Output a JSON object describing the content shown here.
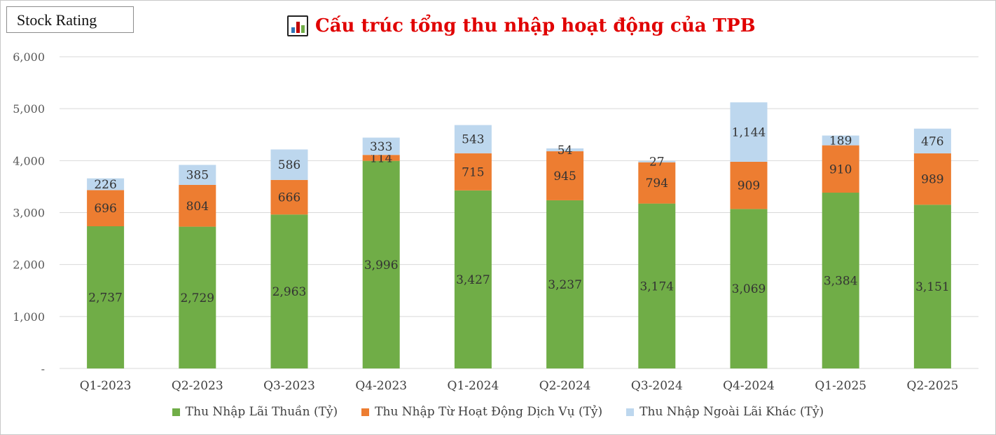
{
  "brand": {
    "label": "Stock Rating"
  },
  "header": {
    "title": "Cấu trúc tổng thu nhập hoạt động của TPB"
  },
  "colors": {
    "net_interest": "#70ad47",
    "service": "#ed7d31",
    "other": "#bdd7ee",
    "title": "#e00000",
    "grid": "#d9d9d9"
  },
  "chart_data": {
    "type": "bar",
    "stacked": true,
    "title": "Cấu trúc tổng thu nhập hoạt động của TPB",
    "categories": [
      "Q1-2023",
      "Q2-2023",
      "Q3-2023",
      "Q4-2023",
      "Q1-2024",
      "Q2-2024",
      "Q3-2024",
      "Q4-2024",
      "Q1-2025",
      "Q2-2025"
    ],
    "series": [
      {
        "name": "Thu Nhập Lãi Thuần (Tỷ)",
        "color": "#70ad47",
        "values": [
          2737,
          2729,
          2963,
          3996,
          3427,
          3237,
          3174,
          3069,
          3384,
          3151
        ],
        "labels": [
          "2,737",
          "2,729",
          "2,963",
          "3,996",
          "3,427",
          "3,237",
          "3,174",
          "3,069",
          "3,384",
          "3,151"
        ]
      },
      {
        "name": "Thu Nhập Từ Hoạt Động Dịch Vụ (Tỷ)",
        "color": "#ed7d31",
        "values": [
          696,
          804,
          666,
          114,
          715,
          945,
          794,
          909,
          910,
          989
        ],
        "labels": [
          "696",
          "804",
          "666",
          "114",
          "715",
          "945",
          "794",
          "909",
          "910",
          "989"
        ]
      },
      {
        "name": "Thu Nhập Ngoài Lãi Khác (Tỷ)",
        "color": "#bdd7ee",
        "values": [
          226,
          385,
          586,
          333,
          543,
          54,
          27,
          1144,
          189,
          476
        ],
        "labels": [
          "226",
          "385",
          "586",
          "333",
          "543",
          "54",
          "27",
          "1,144",
          "189",
          "476"
        ]
      }
    ],
    "ylim": [
      0,
      6000
    ],
    "yticks": [
      0,
      1000,
      2000,
      3000,
      4000,
      5000,
      6000
    ],
    "ytick_labels": [
      "-",
      "1,000",
      "2,000",
      "3,000",
      "4,000",
      "5,000",
      "6,000"
    ],
    "grid": true,
    "legend": "bottom"
  }
}
